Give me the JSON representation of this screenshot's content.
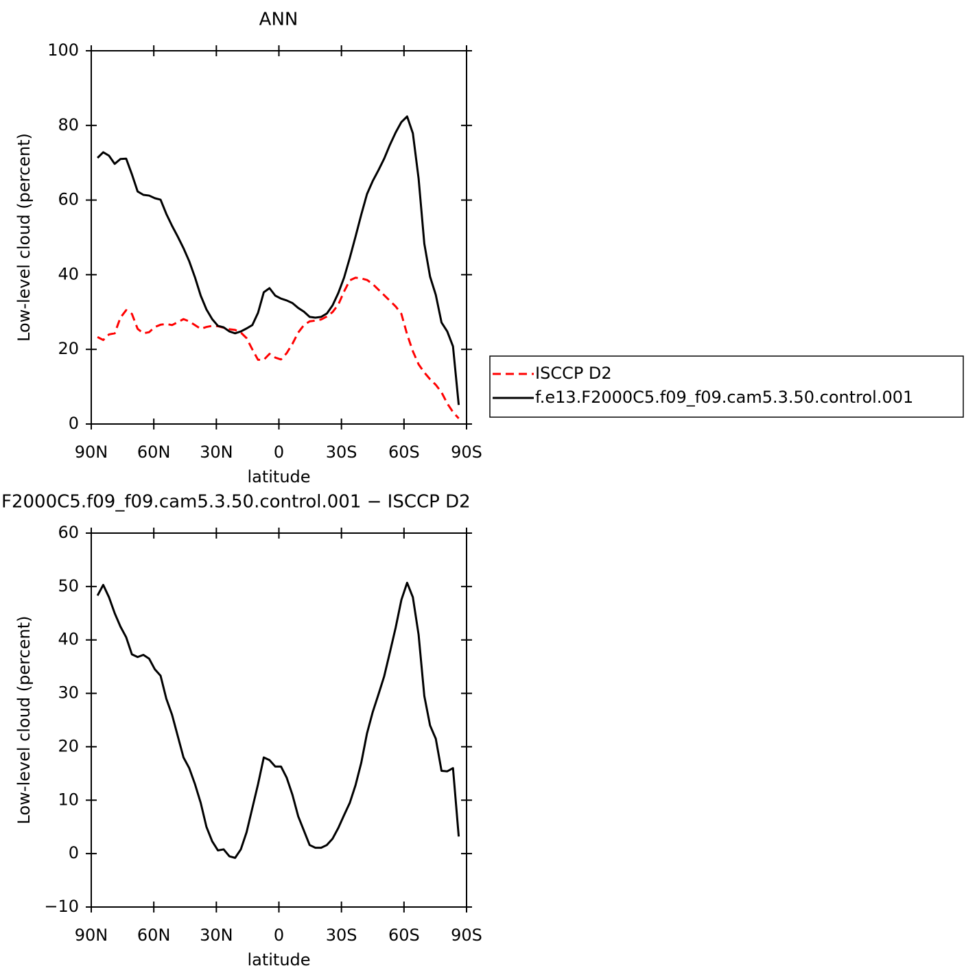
{
  "chart_data": [
    {
      "type": "line",
      "title": "ANN",
      "xlabel": "latitude",
      "ylabel": "Low-level cloud (percent)",
      "xlim": [
        90,
        -90
      ],
      "xticks": [
        {
          "value": 90,
          "label": "90N"
        },
        {
          "value": 60,
          "label": "60N"
        },
        {
          "value": 30,
          "label": "30N"
        },
        0,
        {
          "value": -30,
          "label": "30S"
        },
        {
          "value": -60,
          "label": "60S"
        },
        {
          "value": -90,
          "label": "90S"
        }
      ],
      "ylim": [
        0,
        100
      ],
      "yticks": [
        0,
        20,
        40,
        60,
        80,
        100
      ],
      "x": [
        87,
        84.25,
        81.5,
        78.75,
        76,
        73.25,
        70.5,
        67.75,
        65,
        62.25,
        59.5,
        56.75,
        54,
        51.25,
        48.5,
        45.75,
        43,
        40.25,
        37.5,
        34.75,
        32,
        29.25,
        26.5,
        23.75,
        21,
        18.25,
        15.5,
        12.75,
        10,
        7.25,
        4.5,
        1.75,
        -1,
        -3.75,
        -6.5,
        -9.25,
        -12,
        -14.75,
        -17.5,
        -20.25,
        -23,
        -25.75,
        -28.5,
        -31.25,
        -34,
        -36.75,
        -39.5,
        -42.25,
        -45,
        -47.75,
        -50.5,
        -53.25,
        -56,
        -58.75,
        -61.5,
        -64.25,
        -67,
        -69.75,
        -72.5,
        -75.25,
        -78,
        -80.75,
        -83.5,
        -86.25
      ],
      "series": [
        {
          "name": "ISCCP D2",
          "color": "#ff0000",
          "dash": true,
          "values": [
            23.3,
            22.5,
            24,
            24.3,
            28.5,
            30.5,
            29.5,
            25.5,
            24.3,
            24.6,
            26,
            26.6,
            26.8,
            26.5,
            27.3,
            28.1,
            27.5,
            26.5,
            25.5,
            26,
            26.3,
            26.2,
            25.8,
            25.4,
            25.2,
            24.5,
            23,
            20,
            17.2,
            17.2,
            18.8,
            17.8,
            17.3,
            19,
            21.5,
            24.5,
            26.5,
            27.5,
            27.7,
            28,
            28.8,
            30,
            32,
            35.5,
            38.5,
            39.2,
            39,
            38.6,
            37.5,
            36,
            34.5,
            33,
            31.5,
            29.5,
            24,
            19.5,
            16,
            13.8,
            12,
            10.5,
            8.5,
            5.5,
            3.2,
            1.5
          ]
        },
        {
          "name": "f.e13.F2000C5.f09_f09.cam5.3.50.control.001",
          "color": "#000000",
          "dash": false,
          "values": [
            71.3,
            72.8,
            71.9,
            69.7,
            71,
            71.1,
            66.9,
            62.3,
            61.4,
            61.2,
            60.5,
            60.1,
            56.3,
            53.1,
            50.2,
            47.1,
            43.6,
            39.3,
            34.4,
            30.7,
            28.1,
            26.3,
            25.9,
            24.8,
            24.3,
            24.8,
            25.6,
            26.5,
            29.8,
            35.3,
            36.4,
            34.4,
            33.6,
            33.1,
            32.4,
            31.1,
            30.1,
            28.7,
            28.5,
            28.7,
            29.6,
            31.8,
            35.1,
            39.2,
            44.5,
            50.2,
            56.1,
            61.6,
            65.1,
            68,
            71.1,
            74.8,
            78.1,
            80.9,
            82.4,
            77.9,
            65.8,
            48.3,
            39.5,
            34.6,
            27.2,
            24.8,
            20.8,
            5.1
          ]
        }
      ]
    },
    {
      "type": "line",
      "title": "F2000C5.f09_f09.cam5.3.50.control.001 − ISCCP D2",
      "xlabel": "latitude",
      "ylabel": "Low-level cloud (percent)",
      "xlim": [
        90,
        -90
      ],
      "xticks": [
        {
          "value": 90,
          "label": "90N"
        },
        {
          "value": 60,
          "label": "60N"
        },
        {
          "value": 30,
          "label": "30N"
        },
        0,
        {
          "value": -30,
          "label": "30S"
        },
        {
          "value": -60,
          "label": "60S"
        },
        {
          "value": -90,
          "label": "90S"
        }
      ],
      "ylim": [
        -10,
        60
      ],
      "yticks": [
        {
          "value": -10,
          "label": "−10"
        },
        0,
        10,
        20,
        30,
        40,
        50,
        60
      ],
      "x": [
        87,
        84.25,
        81.5,
        78.75,
        76,
        73.25,
        70.5,
        67.75,
        65,
        62.25,
        59.5,
        56.75,
        54,
        51.25,
        48.5,
        45.75,
        43,
        40.25,
        37.5,
        34.75,
        32,
        29.25,
        26.5,
        23.75,
        21,
        18.25,
        15.5,
        12.75,
        10,
        7.25,
        4.5,
        1.75,
        -1,
        -3.75,
        -6.5,
        -9.25,
        -12,
        -14.75,
        -17.5,
        -20.25,
        -23,
        -25.75,
        -28.5,
        -31.25,
        -34,
        -36.75,
        -39.5,
        -42.25,
        -45,
        -47.75,
        -50.5,
        -53.25,
        -56,
        -58.75,
        -61.5,
        -64.25,
        -67,
        -69.75,
        -72.5,
        -75.25,
        -78,
        -80.75,
        -83.5,
        -86.25
      ],
      "series": [
        {
          "color": "#000000",
          "dash": false,
          "values": [
            48.3,
            50.3,
            48,
            45,
            42.5,
            40.5,
            37.3,
            36.8,
            37.2,
            36.5,
            34.5,
            33.3,
            29,
            26,
            22,
            18,
            16,
            13,
            9.5,
            5,
            2.3,
            0.6,
            0.8,
            -0.5,
            -0.8,
            0.8,
            4,
            8.5,
            13,
            18,
            17.5,
            16.3,
            16.3,
            14.2,
            11,
            7,
            4.3,
            1.6,
            1.1,
            1.1,
            1.6,
            2.8,
            4.8,
            7.2,
            9.5,
            12.8,
            17,
            22.5,
            26.5,
            29.8,
            33.2,
            37.7,
            42.3,
            47.5,
            50.7,
            48,
            41,
            29.5,
            24,
            21.5,
            15.5,
            15.4,
            16,
            3.2
          ]
        }
      ]
    }
  ]
}
